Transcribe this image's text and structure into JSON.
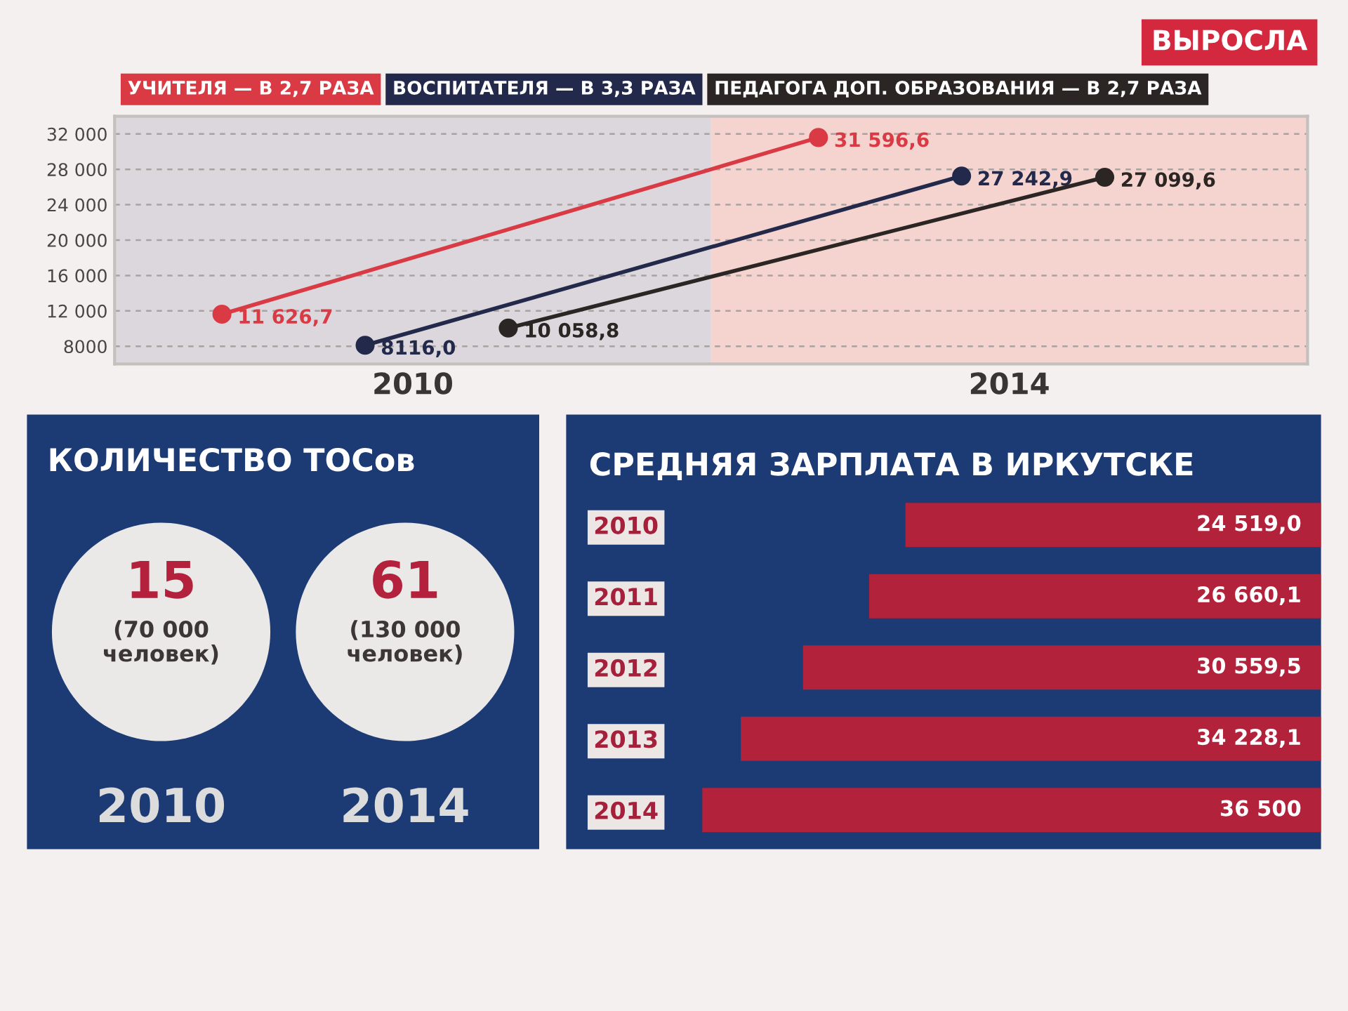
{
  "chart_data": [
    {
      "type": "line",
      "title": "ВЫРОСЛА",
      "categories": [
        "2010",
        "2014"
      ],
      "series": [
        {
          "name": "УЧИТЕЛЯ — В 2,7 РАЗА",
          "color": "#d93a44",
          "values": [
            11626.7,
            31596.6
          ],
          "value_labels": [
            "11 626,7",
            "31 596,6"
          ]
        },
        {
          "name": "ВОСПИТАТЕЛЯ — В 3,3 РАЗА",
          "color": "#22294a",
          "values": [
            8116.0,
            27242.9
          ],
          "value_labels": [
            "8116,0",
            "27 242,9"
          ]
        },
        {
          "name": "ПЕДАГОГА ДОП. ОБРАЗОВАНИЯ — В 2,7 РАЗА",
          "color": "#2b2624",
          "values": [
            10058.8,
            27099.6
          ],
          "value_labels": [
            "10 058,8",
            "27 099,6"
          ]
        }
      ],
      "ylim": [
        6000,
        34000
      ],
      "yticks": [
        8000,
        {
          "value": 12000,
          "label": "12 000"
        },
        {
          "value": 16000,
          "label": "16 000"
        },
        {
          "value": 20000,
          "label": "20 000"
        },
        {
          "value": 24000,
          "label": "24 000"
        },
        {
          "value": 28000,
          "label": "28 000"
        },
        {
          "value": 32000,
          "label": "32 000"
        }
      ],
      "grid": "y",
      "legend": "top left",
      "marker": "circle",
      "line_style": "solid",
      "bands": [
        {
          "axis": "x",
          "from": "2010",
          "to": "2010",
          "color": "#dcd7dd"
        },
        {
          "axis": "x",
          "from": "2014",
          "to": "2014",
          "color": "#f5d4cf"
        }
      ]
    },
    {
      "type": "other",
      "title": "КОЛИЧЕСТВО ТОСов",
      "categories": [
        "2010",
        "2014"
      ],
      "values": [
        15,
        61
      ],
      "color": "#ebe8e8",
      "data_labels": true,
      "annotations": [
        "(70 000 человек)",
        "(130 000 человек)"
      ]
    },
    {
      "type": "bar",
      "title": "СРЕДНЯЯ ЗАРПЛАТА В ИРКУТСКЕ",
      "orientation": "horizontal",
      "categories": [
        "2010",
        "2011",
        "2012",
        "2013",
        "2014"
      ],
      "values": [
        24519.0,
        26660.1,
        30559.5,
        34228.1,
        36500
      ],
      "color": "#b3223b",
      "value_labels": [
        "24 519,0",
        "26 660,1",
        "30 559,5",
        "34 228,1",
        "36 500"
      ]
    }
  ]
}
